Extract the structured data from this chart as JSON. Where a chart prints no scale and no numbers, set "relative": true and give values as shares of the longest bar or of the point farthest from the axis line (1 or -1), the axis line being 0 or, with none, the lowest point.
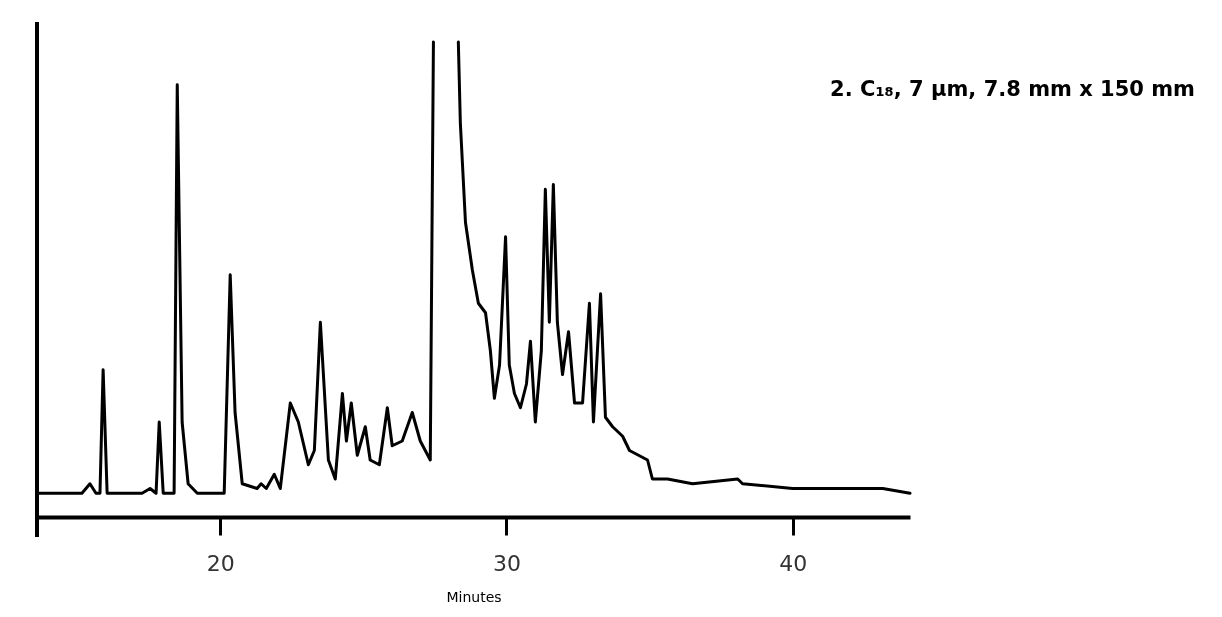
{
  "chart_data": {
    "type": "line",
    "relative": true,
    "xlabel": "Minutes",
    "annotations": [
      "2. C₁₈, 7 µm, 7.8 mm x 150 mm"
    ],
    "xlim": [
      13.6,
      44.1
    ],
    "xticks": [
      20,
      30,
      40
    ],
    "grid": false,
    "marker": "none",
    "line_style": "solid",
    "series": [
      {
        "color": "#000000",
        "x": [
          13.6,
          15.17,
          15.45,
          15.66,
          15.8,
          15.91,
          16.05,
          17.27,
          17.55,
          17.76,
          17.87,
          18.01,
          18.39,
          18.5,
          18.67,
          18.88,
          19.2,
          20.14,
          20.35,
          20.52,
          20.77,
          21.29,
          21.43,
          21.61,
          21.89,
          22.1,
          22.45,
          22.73,
          23.08,
          23.29,
          23.5,
          23.78,
          24.02,
          24.27,
          24.41,
          24.58,
          24.79,
          25.07,
          25.24,
          25.56,
          25.84,
          26.01,
          26.36,
          26.71,
          26.99,
          27.34,
          27.45,
          27.9,
          28.32,
          28.39,
          28.57,
          28.81,
          29.02,
          29.27,
          29.44,
          29.58,
          29.76,
          29.97,
          30.1,
          30.28,
          30.49,
          30.7,
          30.84,
          31.01,
          31.22,
          31.36,
          31.5,
          31.64,
          31.78,
          31.96,
          32.17,
          32.38,
          32.66,
          32.9,
          33.04,
          33.29,
          33.46,
          33.71,
          34.06,
          34.3,
          34.93,
          35.1,
          35.63,
          36.5,
          38.08,
          38.25,
          40.0,
          42.45,
          43.15,
          44.1
        ],
        "values": [
          0.05,
          0.05,
          0.07,
          0.05,
          0.05,
          0.31,
          0.05,
          0.05,
          0.06,
          0.05,
          0.2,
          0.05,
          0.05,
          0.91,
          0.2,
          0.07,
          0.05,
          0.05,
          0.51,
          0.22,
          0.07,
          0.06,
          0.07,
          0.06,
          0.09,
          0.06,
          0.24,
          0.2,
          0.11,
          0.14,
          0.41,
          0.12,
          0.08,
          0.26,
          0.16,
          0.24,
          0.13,
          0.19,
          0.12,
          0.11,
          0.23,
          0.15,
          0.16,
          0.22,
          0.16,
          0.12,
          1.0,
          null,
          1.0,
          0.83,
          0.62,
          0.52,
          0.45,
          0.43,
          0.35,
          0.25,
          0.32,
          0.59,
          0.32,
          0.26,
          0.23,
          0.28,
          0.37,
          0.2,
          0.35,
          0.69,
          0.41,
          0.7,
          0.41,
          0.3,
          0.39,
          0.24,
          0.24,
          0.45,
          0.2,
          0.47,
          0.21,
          0.19,
          0.17,
          0.14,
          0.12,
          0.08,
          0.08,
          0.07,
          0.08,
          0.07,
          0.06,
          0.06,
          0.06,
          0.05
        ]
      }
    ]
  }
}
